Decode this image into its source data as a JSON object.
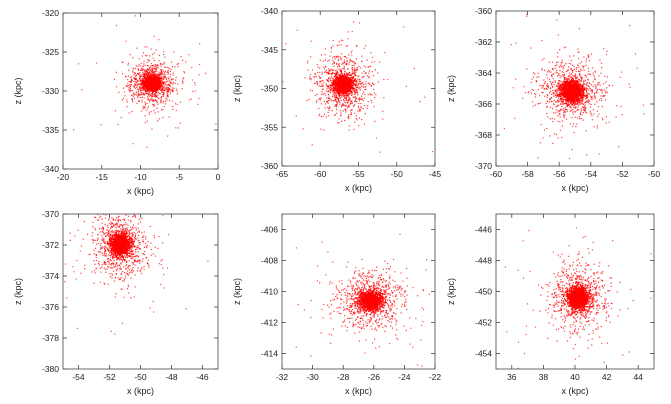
{
  "chart_data": [
    {
      "type": "scatter",
      "xlabel": "x (kpc)",
      "ylabel": "z (kpc)",
      "xlim": [
        -20,
        0
      ],
      "ylim": [
        -340,
        -320
      ],
      "xticks": [
        -20,
        -15,
        -10,
        -5,
        0
      ],
      "yticks": [
        -340,
        -335,
        -330,
        -325,
        -320
      ],
      "center": [
        -8.5,
        -329
      ],
      "core_sigma": [
        0.55,
        0.45
      ],
      "halo_sigma": [
        1.6,
        1.5
      ],
      "color": "#ff0000"
    },
    {
      "type": "scatter",
      "xlabel": "x (kpc)",
      "ylabel": "z (kpc)",
      "xlim": [
        -65,
        -45
      ],
      "ylim": [
        -360,
        -340
      ],
      "xticks": [
        -65,
        -60,
        -55,
        -50,
        -45
      ],
      "yticks": [
        -360,
        -355,
        -350,
        -345,
        -340
      ],
      "center": [
        -57,
        -349.5
      ],
      "core_sigma": [
        0.6,
        0.55
      ],
      "halo_sigma": [
        1.8,
        2.0
      ],
      "color": "#ff0000"
    },
    {
      "type": "scatter",
      "xlabel": "x (kpc)",
      "ylabel": "z (kpc)",
      "xlim": [
        -60,
        -50
      ],
      "ylim": [
        -370,
        -360
      ],
      "xticks": [
        -60,
        -58,
        -56,
        -54,
        -52,
        -50
      ],
      "yticks": [
        -370,
        -368,
        -366,
        -364,
        -362,
        -360
      ],
      "center": [
        -55.2,
        -365.2
      ],
      "core_sigma": [
        0.35,
        0.35
      ],
      "halo_sigma": [
        1.0,
        1.0
      ],
      "color": "#ff0000"
    },
    {
      "type": "scatter",
      "xlabel": "x (kpc)",
      "ylabel": "z (kpc)",
      "xlim": [
        -55,
        -45
      ],
      "ylim": [
        -380,
        -370
      ],
      "xticks": [
        -54,
        -52,
        -50,
        -48,
        -46
      ],
      "yticks": [
        -380,
        -378,
        -376,
        -374,
        -372,
        -370
      ],
      "center": [
        -51.3,
        -372
      ],
      "core_sigma": [
        0.3,
        0.35
      ],
      "halo_sigma": [
        0.9,
        1.1
      ],
      "color": "#ff0000"
    },
    {
      "type": "scatter",
      "xlabel": "x (kpc)",
      "ylabel": "z (kpc)",
      "xlim": [
        -32,
        -22
      ],
      "ylim": [
        -415,
        -405
      ],
      "xticks": [
        -32,
        -30,
        -28,
        -26,
        -24,
        -22
      ],
      "yticks": [
        -414,
        -412,
        -410,
        -408,
        -406
      ],
      "center": [
        -26.2,
        -410.6
      ],
      "core_sigma": [
        0.35,
        0.3
      ],
      "halo_sigma": [
        1.1,
        0.9
      ],
      "color": "#ff0000"
    },
    {
      "type": "scatter",
      "xlabel": "x (kpc)",
      "ylabel": "z (kpc)",
      "xlim": [
        35,
        45
      ],
      "ylim": [
        -455,
        -445
      ],
      "xticks": [
        36,
        38,
        40,
        42,
        44
      ],
      "yticks": [
        -454,
        -452,
        -450,
        -448,
        -446
      ],
      "center": [
        40.2,
        -450.4
      ],
      "core_sigma": [
        0.3,
        0.35
      ],
      "halo_sigma": [
        0.9,
        1.0
      ],
      "color": "#ff0000"
    }
  ]
}
